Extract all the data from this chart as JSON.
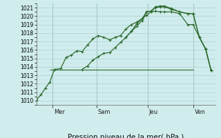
{
  "title": "Pression niveau de la mer( hPa )",
  "bg_color": "#d0ecec",
  "grid_color_major": "#a8d0d0",
  "line_color": "#2d6a2d",
  "ylim": [
    1009.5,
    1021.5
  ],
  "xlim": [
    0,
    1
  ],
  "ytick_min": 1010,
  "ytick_max": 1021,
  "day_labels": [
    "Mer",
    "Sam",
    "Jeu",
    "Ven"
  ],
  "day_positions": [
    0.09,
    0.335,
    0.62,
    0.875
  ],
  "line1_x": [
    0.0,
    0.025,
    0.05,
    0.075,
    0.1,
    0.135,
    0.165,
    0.195,
    0.225,
    0.255,
    0.285,
    0.315,
    0.345,
    0.375,
    0.41,
    0.44,
    0.47,
    0.5,
    0.53,
    0.56,
    0.59,
    0.615,
    0.64,
    0.665,
    0.69,
    0.715,
    0.755,
    0.8,
    0.845,
    0.875,
    0.91,
    0.945,
    0.975
  ],
  "line1_y": [
    1010.1,
    1010.7,
    1011.5,
    1012.2,
    1013.7,
    1013.8,
    1015.1,
    1015.4,
    1015.9,
    1015.8,
    1016.6,
    1017.3,
    1017.7,
    1017.5,
    1017.2,
    1017.5,
    1017.7,
    1018.5,
    1019.0,
    1019.3,
    1019.7,
    1020.1,
    1020.5,
    1020.6,
    1020.5,
    1020.5,
    1020.5,
    1020.3,
    1019.0,
    1019.0,
    1017.5,
    1016.1,
    1013.6
  ],
  "line2_x": [
    0.255,
    0.285,
    0.315,
    0.345,
    0.375,
    0.41,
    0.44,
    0.47,
    0.5,
    0.53,
    0.56,
    0.59,
    0.615,
    0.64,
    0.665,
    0.69,
    0.715,
    0.755,
    0.8,
    0.845,
    0.875,
    0.91,
    0.945,
    0.975
  ],
  "line2_y": [
    1013.7,
    1014.1,
    1014.8,
    1015.2,
    1015.6,
    1015.7,
    1016.3,
    1016.9,
    1017.5,
    1018.2,
    1019.1,
    1019.7,
    1020.5,
    1020.6,
    1021.0,
    1021.1,
    1021.1,
    1020.8,
    1020.5,
    1020.3,
    1020.3,
    1017.5,
    1016.1,
    1013.6
  ],
  "line3_x": [
    0.5,
    0.53,
    0.56,
    0.59,
    0.615,
    0.64,
    0.665,
    0.69,
    0.715,
    0.755,
    0.8,
    0.845,
    0.875,
    0.91,
    0.945,
    0.975
  ],
  "line3_y": [
    1017.5,
    1018.2,
    1018.8,
    1019.5,
    1020.5,
    1020.6,
    1021.1,
    1021.2,
    1021.2,
    1020.9,
    1020.5,
    1020.3,
    1020.3,
    1017.5,
    1016.1,
    1013.6
  ],
  "hline_y": 1013.7,
  "hline_x_start": 0.075,
  "hline_x_end": 0.875,
  "marker_size": 2.5,
  "linewidth": 0.9,
  "xlabel_fontsize": 7.5,
  "ytick_fontsize": 5.5,
  "day_label_fontsize": 6.0
}
